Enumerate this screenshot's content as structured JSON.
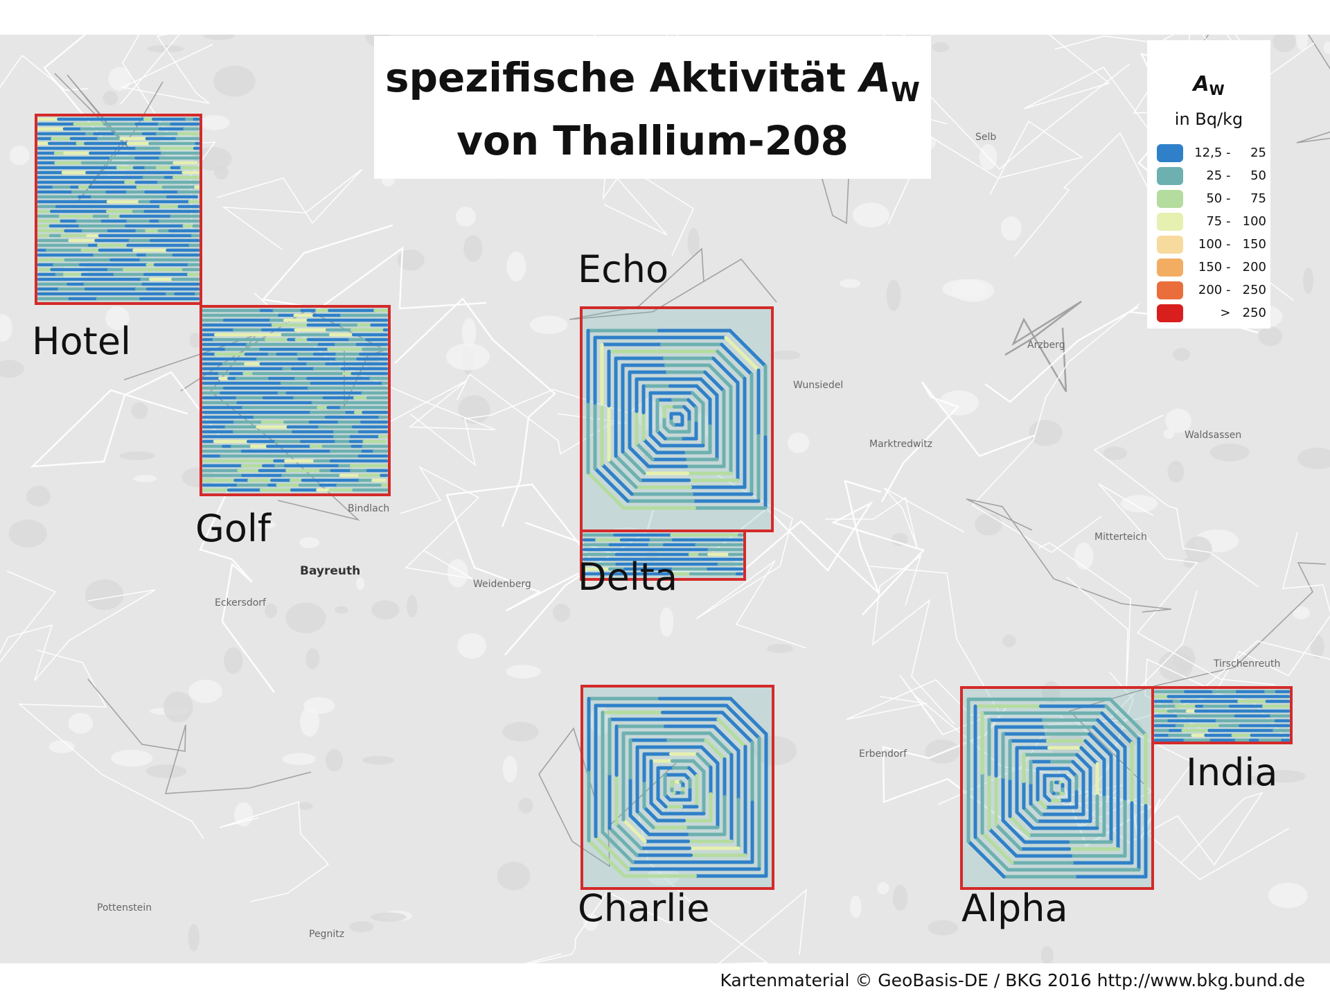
{
  "title": {
    "line1_text": "spezifische Aktivität ",
    "line1_symbol": "A",
    "line1_subscript": "W",
    "line2": "von Thallium-208"
  },
  "legend": {
    "symbol": "A",
    "subscript": "W",
    "unit": "in Bq/kg",
    "classes": [
      {
        "range": "12,5 -     25",
        "color": "#2f80c8"
      },
      {
        "range": "25 -     50",
        "color": "#6db0b0"
      },
      {
        "range": "50 -     75",
        "color": "#b4dc9e"
      },
      {
        "range": "75 -   100",
        "color": "#e6f0b0"
      },
      {
        "range": "100 -   150",
        "color": "#f7da9e"
      },
      {
        "range": "150 -   200",
        "color": "#f3ad62"
      },
      {
        "range": "200 -   250",
        "color": "#ea6e3c"
      },
      {
        "range": ">   250",
        "color": "#d91e1e"
      }
    ]
  },
  "survey_areas": [
    {
      "name": "Hotel",
      "pattern": "lines"
    },
    {
      "name": "Golf",
      "pattern": "lines"
    },
    {
      "name": "Echo",
      "pattern": "spiral"
    },
    {
      "name": "Delta",
      "pattern": "lines"
    },
    {
      "name": "Charlie",
      "pattern": "spiral"
    },
    {
      "name": "Alpha",
      "pattern": "spiral"
    },
    {
      "name": "India",
      "pattern": "lines"
    }
  ],
  "places": [
    "Bayreuth",
    "Wunsiedel",
    "Marktredwitz",
    "Arzberg",
    "Selb",
    "Waldsassen",
    "Mitterteich",
    "Tirschenreuth",
    "Weidenberg",
    "Erbendorf",
    "Pegnitz",
    "Pottenstein",
    "Bindlach",
    "Eckersdorf"
  ],
  "credit": "Kartenmaterial © GeoBasis-DE / BKG 2016  http://www.bkg.bund.de",
  "colors": {
    "frame": "#d42a2a",
    "map_bg": "#e6e6e6"
  }
}
